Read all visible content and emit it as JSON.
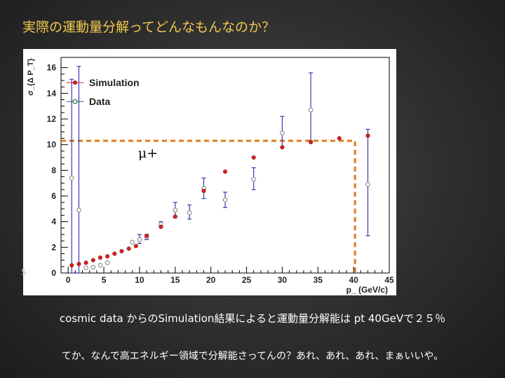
{
  "slide": {
    "title": "実際の運動量分解ってどんなもんなのか？",
    "caption1": "cosmic data からのSimulation結果によると運動量分解能は pt 40GeVで２５％",
    "caption2": "てか、なんで高エネルギー領域で分解能さってんの？あれ、あれ、あれ、まぁいいや。",
    "side_mark": "5"
  },
  "colors": {
    "title": "#f2c94c",
    "simulation": "#d42020",
    "data_marker": "#9a9a9a",
    "data_errorbar": "#3a3ab5",
    "guide_line": "#e07b1a"
  },
  "chart_data": {
    "type": "scatter",
    "xlabel": "p_ (GeV/c)",
    "ylabel": "σ_{Δ P_T}",
    "xlim": [
      -1,
      45
    ],
    "ylim": [
      0,
      16.8
    ],
    "xticks": [
      0,
      5,
      10,
      15,
      20,
      25,
      30,
      35,
      40,
      45
    ],
    "yticks": [
      0,
      2,
      4,
      6,
      8,
      10,
      12,
      14,
      16
    ],
    "grid": false,
    "legend_position": "top-left",
    "annotation": "μ+",
    "guide_line": {
      "y": 10.3,
      "x_end": 40.2
    },
    "series": [
      {
        "name": "Simulation",
        "marker": "filled-circle",
        "points": [
          {
            "x": 0.5,
            "y": 0.6
          },
          {
            "x": 1.5,
            "y": 0.7
          },
          {
            "x": 2.5,
            "y": 0.8
          },
          {
            "x": 3.5,
            "y": 1.0
          },
          {
            "x": 4.5,
            "y": 1.2
          },
          {
            "x": 5.5,
            "y": 1.3
          },
          {
            "x": 6.5,
            "y": 1.5
          },
          {
            "x": 7.5,
            "y": 1.7
          },
          {
            "x": 8.5,
            "y": 1.9
          },
          {
            "x": 9.5,
            "y": 2.1
          },
          {
            "x": 11,
            "y": 2.9
          },
          {
            "x": 13,
            "y": 3.6
          },
          {
            "x": 15,
            "y": 4.4
          },
          {
            "x": 19,
            "y": 6.4
          },
          {
            "x": 22,
            "y": 7.9
          },
          {
            "x": 26,
            "y": 9.0
          },
          {
            "x": 30,
            "y": 9.8
          },
          {
            "x": 34,
            "y": 10.2
          },
          {
            "x": 38,
            "y": 10.5
          },
          {
            "x": 42,
            "y": 10.7
          }
        ]
      },
      {
        "name": "Data",
        "marker": "open-circle",
        "points": [
          {
            "x": 0.5,
            "y": 7.4,
            "err_low": 7.4,
            "err_high": 7.7
          },
          {
            "x": 1.5,
            "y": 4.9,
            "err_low": 4.9,
            "err_high": 11.2
          },
          {
            "x": 2.5,
            "y": 0.4,
            "err_low": 0.05,
            "err_high": 0.05
          },
          {
            "x": 3.5,
            "y": 0.45,
            "err_low": 0.05,
            "err_high": 0.05
          },
          {
            "x": 4.5,
            "y": 0.6,
            "err_low": 0.05,
            "err_high": 0.05
          },
          {
            "x": 5.5,
            "y": 0.8,
            "err_low": 0.05,
            "err_high": 0.05
          },
          {
            "x": 9,
            "y": 2.4,
            "err_low": 0.05,
            "err_high": 0.05
          },
          {
            "x": 10,
            "y": 2.6,
            "err_low": 0.3,
            "err_high": 0.4
          },
          {
            "x": 11,
            "y": 2.8,
            "err_low": 0.2,
            "err_high": 0.2
          },
          {
            "x": 13,
            "y": 3.8,
            "err_low": 0.2,
            "err_high": 0.2
          },
          {
            "x": 15,
            "y": 4.9,
            "err_low": 0.6,
            "err_high": 0.6
          },
          {
            "x": 17,
            "y": 4.7,
            "err_low": 0.5,
            "err_high": 0.6
          },
          {
            "x": 19,
            "y": 6.6,
            "err_low": 0.8,
            "err_high": 0.8
          },
          {
            "x": 22,
            "y": 5.7,
            "err_low": 0.6,
            "err_high": 0.6
          },
          {
            "x": 26,
            "y": 7.3,
            "err_low": 0.8,
            "err_high": 0.9
          },
          {
            "x": 30,
            "y": 10.9,
            "err_low": 1.1,
            "err_high": 1.3
          },
          {
            "x": 34,
            "y": 12.7,
            "err_low": 2.4,
            "err_high": 2.9
          },
          {
            "x": 42,
            "y": 6.9,
            "err_low": 4.0,
            "err_high": 4.3
          }
        ]
      }
    ]
  }
}
